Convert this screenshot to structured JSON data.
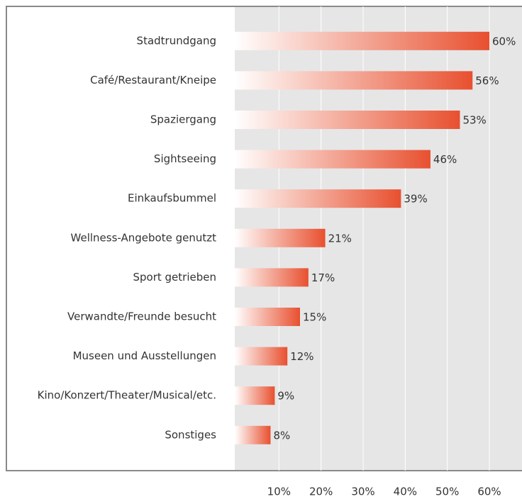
{
  "chart_data": {
    "type": "barh",
    "categories": [
      "Stadtrundgang",
      "Café/Restaurant/Kneipe",
      "Spaziergang",
      "Sightseeing",
      "Einkaufsbummel",
      "Wellness-Angebote genutzt",
      "Sport getrieben",
      "Verwandte/Freunde besucht",
      "Museen und Ausstellungen",
      "Kino/Konzert/Theater/Musical/etc.",
      "Sonstiges"
    ],
    "values": [
      60,
      56,
      53,
      46,
      39,
      21,
      17,
      15,
      12,
      9,
      8
    ],
    "value_labels": [
      "60%",
      "56%",
      "53%",
      "46%",
      "39%",
      "21%",
      "17%",
      "15%",
      "12%",
      "9%",
      "8%"
    ],
    "color": "#e8502f",
    "xlim": [
      0,
      60
    ],
    "xticks": [
      {
        "value": 10,
        "label": "10%"
      },
      {
        "value": 20,
        "label": "20%"
      },
      {
        "value": 30,
        "label": "30%"
      },
      {
        "value": 40,
        "label": "40%"
      },
      {
        "value": 50,
        "label": "50%"
      },
      {
        "value": 60,
        "label": "60%"
      }
    ],
    "grid": true
  }
}
